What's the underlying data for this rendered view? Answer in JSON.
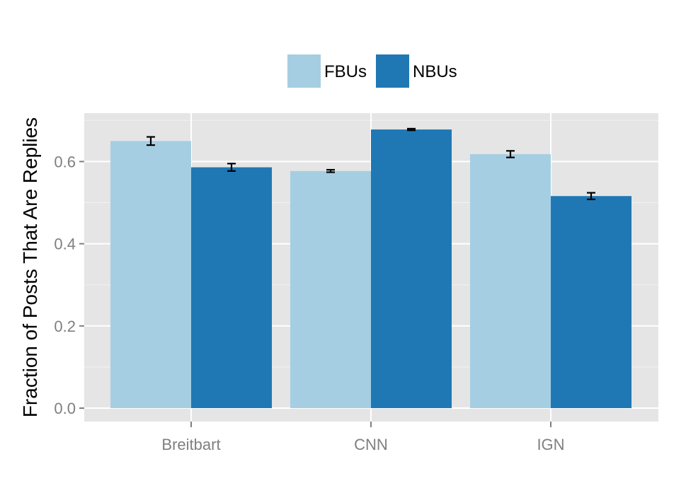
{
  "chart_data": {
    "type": "bar",
    "title": "",
    "xlabel": "",
    "ylabel": "Fraction of Posts That Are Replies",
    "categories": [
      "Breitbart",
      "CNN",
      "IGN"
    ],
    "series": [
      {
        "name": "FBUs",
        "color": "#a6cee3",
        "values": [
          0.65,
          0.577,
          0.618
        ],
        "error": [
          0.01,
          0.003,
          0.008
        ]
      },
      {
        "name": "NBUs",
        "color": "#1f78b4",
        "values": [
          0.586,
          0.678,
          0.516
        ],
        "error": [
          0.009,
          0.002,
          0.008
        ]
      }
    ],
    "ylim": [
      -0.035,
      0.71
    ],
    "yticks": [
      "0.0",
      "0.2",
      "0.4",
      "0.6"
    ],
    "grid": true,
    "legend_position": "top",
    "panel_background": "#e5e5e5"
  }
}
